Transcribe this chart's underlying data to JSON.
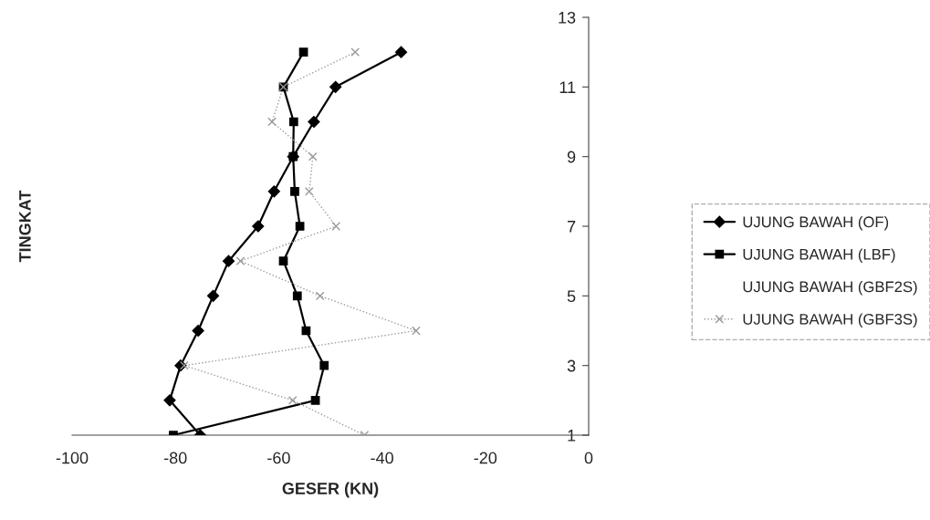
{
  "chart_data": {
    "type": "line",
    "xlabel": "GESER (KN)",
    "ylabel": "TINGKAT",
    "x": [
      1,
      2,
      3,
      4,
      5,
      6,
      7,
      8,
      9,
      10,
      11,
      12
    ],
    "series": [
      {
        "name": "UJUNG BAWAH (OF)",
        "color": "#000000",
        "marker": "diamond",
        "values": [
          -75.2,
          -81.1,
          -79.0,
          -75.6,
          -72.7,
          -69.7,
          -64.0,
          -60.9,
          -57.2,
          -53.2,
          -49.0,
          -36.3
        ]
      },
      {
        "name": "UJUNG BAWAH (LBF)",
        "color": "#000000",
        "marker": "square",
        "values": [
          -80.4,
          -52.9,
          -51.2,
          -54.7,
          -56.4,
          -59.1,
          -55.9,
          -56.9,
          -57.2,
          -57.1,
          -59.1,
          -55.2
        ]
      },
      {
        "name": "UJUNG BAWAH (GBF2S)",
        "values": [
          null,
          null,
          null,
          null,
          null,
          null,
          null,
          null,
          null,
          null,
          null,
          null
        ]
      },
      {
        "name": "UJUNG BAWAH (GBF3S)",
        "color": "#9a9a9a",
        "marker": "cross",
        "line_style": "dotted",
        "values": [
          -43.4,
          -57.3,
          -78.3,
          -33.4,
          -52.0,
          -67.4,
          -48.9,
          -54.1,
          -53.4,
          -61.3,
          -59.1,
          -45.2
        ]
      }
    ],
    "orientation": "horizontal",
    "xlim": [
      -100,
      0
    ],
    "xticks": [
      -100,
      -80,
      -60,
      -40,
      -20,
      0
    ],
    "ylim": [
      1,
      13
    ],
    "yticks": [
      1,
      3,
      5,
      7,
      9,
      11,
      13
    ],
    "grid": false,
    "legend": "right"
  }
}
